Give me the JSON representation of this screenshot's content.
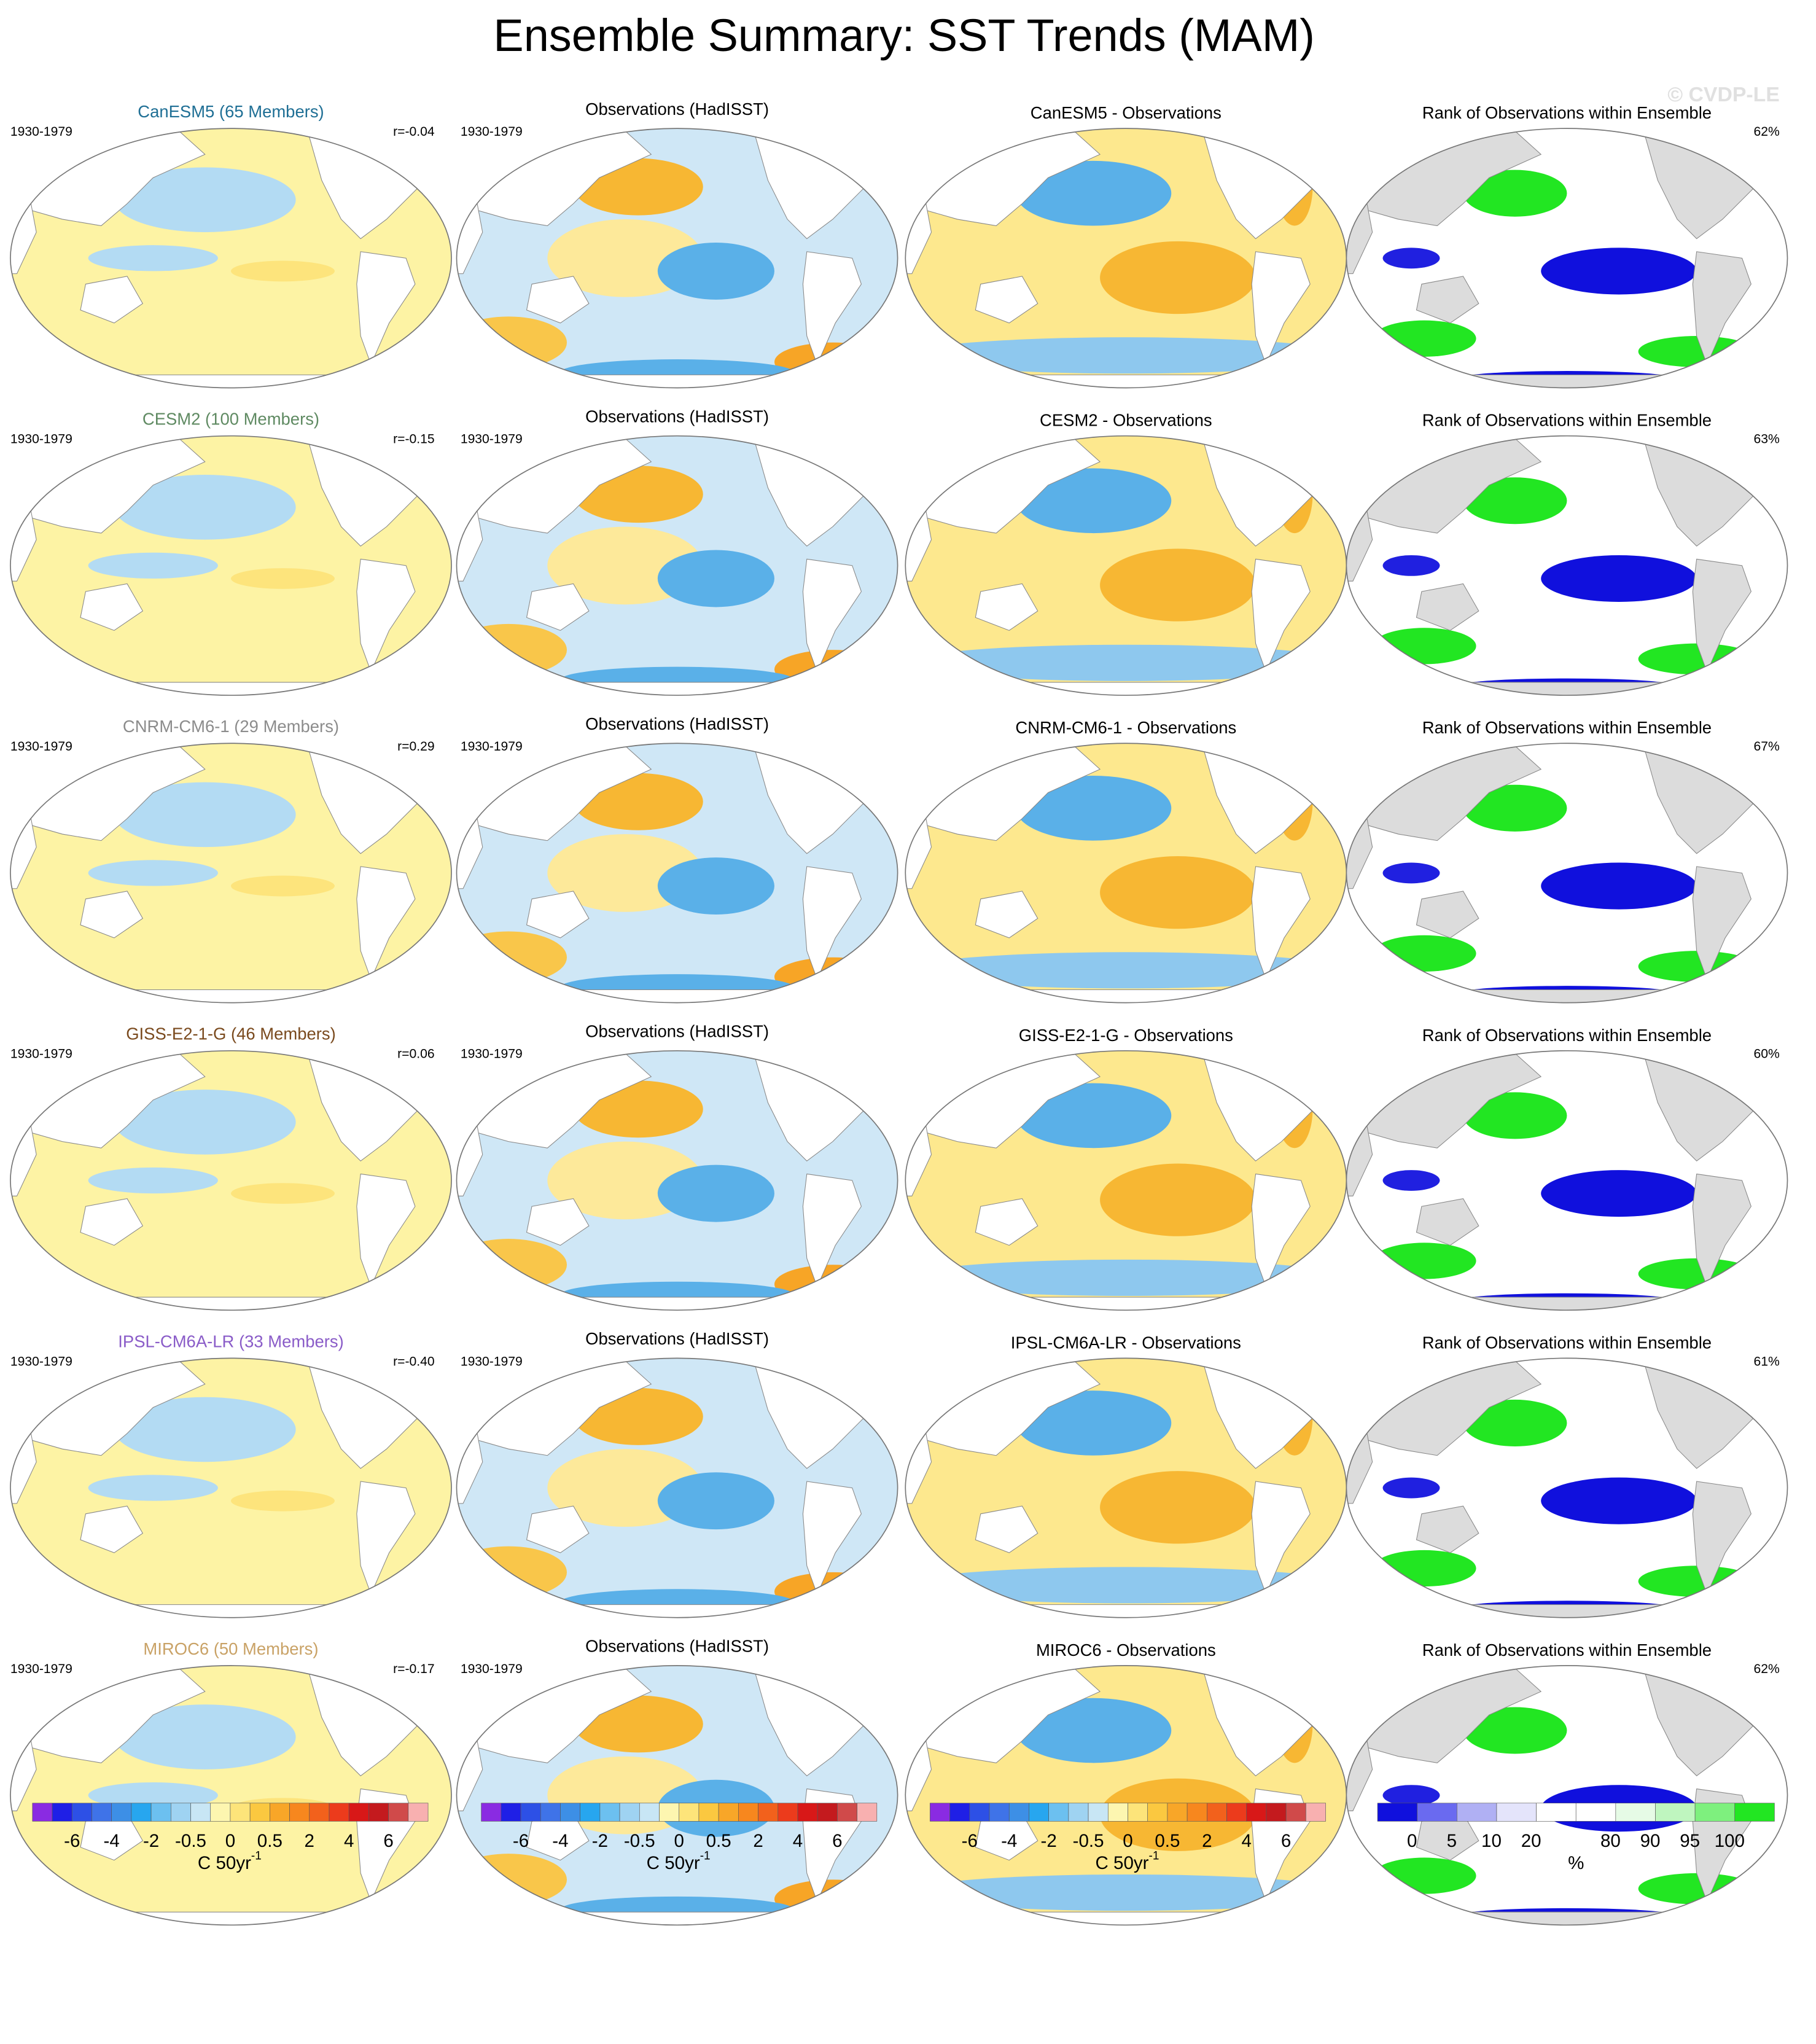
{
  "title": "Ensemble Summary: SST Trends (MAM)",
  "watermark": "© CVDP-LE",
  "rows": [
    {
      "model_title": "CanESM5 (65 Members)",
      "model_color": "#1f6f95",
      "period": "1930-1979",
      "r": "r=-0.04",
      "obs_title": "Observations (HadISST)",
      "obs_period": "1930-1979",
      "diff_title": "CanESM5 - Observations",
      "rank_title": "Rank of Observations within Ensemble",
      "rank_pct": "62%"
    },
    {
      "model_title": "CESM2 (100 Members)",
      "model_color": "#5f8a62",
      "period": "1930-1979",
      "r": "r=-0.15",
      "obs_title": "Observations (HadISST)",
      "obs_period": "1930-1979",
      "diff_title": "CESM2 - Observations",
      "rank_title": "Rank of Observations within Ensemble",
      "rank_pct": "63%"
    },
    {
      "model_title": "CNRM-CM6-1 (29 Members)",
      "model_color": "#8c8c8c",
      "period": "1930-1979",
      "r": "r=0.29",
      "obs_title": "Observations (HadISST)",
      "obs_period": "1930-1979",
      "diff_title": "CNRM-CM6-1 - Observations",
      "rank_title": "Rank of Observations within Ensemble",
      "rank_pct": "67%"
    },
    {
      "model_title": "GISS-E2-1-G (46 Members)",
      "model_color": "#7a4a1e",
      "period": "1930-1979",
      "r": "r=0.06",
      "obs_title": "Observations (HadISST)",
      "obs_period": "1930-1979",
      "diff_title": "GISS-E2-1-G - Observations",
      "rank_title": "Rank of Observations within Ensemble",
      "rank_pct": "60%"
    },
    {
      "model_title": "IPSL-CM6A-LR (33 Members)",
      "model_color": "#8a5cc8",
      "period": "1930-1979",
      "r": "r=-0.40",
      "obs_title": "Observations (HadISST)",
      "obs_period": "1930-1979",
      "diff_title": "IPSL-CM6A-LR - Observations",
      "rank_title": "Rank of Observations within Ensemble",
      "rank_pct": "61%"
    },
    {
      "model_title": "MIROC6 (50 Members)",
      "model_color": "#c9a266",
      "period": "1930-1979",
      "r": "r=-0.17",
      "obs_title": "Observations (HadISST)",
      "obs_period": "1930-1979",
      "diff_title": "MIROC6 - Observations",
      "rank_title": "Rank of Observations within Ensemble",
      "rank_pct": "62%"
    }
  ],
  "colorbars": {
    "trend_labels": [
      -6,
      -4,
      -2,
      -0.5,
      0,
      0.5,
      2,
      4,
      6
    ],
    "trend_unit": "C 50yr",
    "trend_unit_exp": "-1",
    "rank_labels": [
      0,
      5,
      10,
      20,
      80,
      90,
      95,
      100
    ],
    "rank_unit": "%"
  }
}
